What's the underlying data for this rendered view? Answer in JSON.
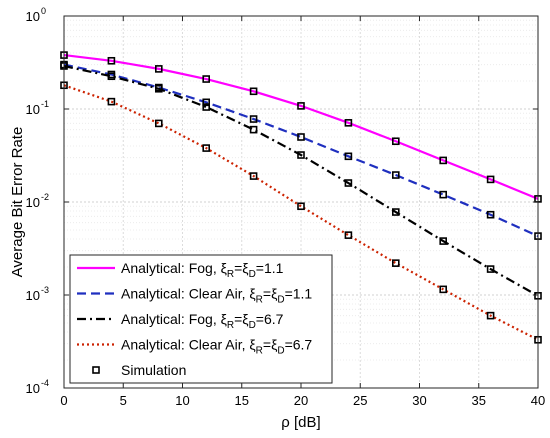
{
  "chart_data": {
    "type": "line",
    "title": "",
    "xlabel": "ρ [dB]",
    "ylabel": "Average Bit Error Rate",
    "x_scale": "linear",
    "y_scale": "log",
    "xlim": [
      0,
      40
    ],
    "ylim": [
      0.0001,
      1
    ],
    "x_ticks": [
      0,
      5,
      10,
      15,
      20,
      25,
      30,
      35,
      40
    ],
    "x_tick_labels": [
      "0",
      "5",
      "10",
      "15",
      "20",
      "25",
      "30",
      "35",
      "40"
    ],
    "y_ticks": [
      0.0001,
      0.001,
      0.01,
      0.1,
      1
    ],
    "y_tick_labels": [
      {
        "base": "10",
        "exp": "-4"
      },
      {
        "base": "10",
        "exp": "-3"
      },
      {
        "base": "10",
        "exp": "-2"
      },
      {
        "base": "10",
        "exp": "-1"
      },
      {
        "base": "10",
        "exp": "0"
      }
    ],
    "grid": true,
    "minor_grid": true,
    "legend_position": "bottom-left",
    "x": [
      0,
      4,
      8,
      12,
      16,
      20,
      24,
      28,
      32,
      36,
      40
    ],
    "series": [
      {
        "name": "Analytical: Fog, ξR=ξD=1.1",
        "legend": {
          "prefix": "Analytical: Fog, ξ",
          "sub1": "R",
          "mid": "=ξ",
          "sub2": "D",
          "suffix": "=1.1"
        },
        "color": "#ff00ff",
        "dash": "solid",
        "values": [
          0.38,
          0.33,
          0.27,
          0.21,
          0.155,
          0.108,
          0.071,
          0.045,
          0.028,
          0.0175,
          0.0108
        ]
      },
      {
        "name": "Analytical: Clear Air, ξR=ξD=1.1",
        "legend": {
          "prefix": "Analytical: Clear Air, ξ",
          "sub1": "R",
          "mid": "=ξ",
          "sub2": "D",
          "suffix": "=1.1"
        },
        "color": "#1f2fbf",
        "dash": "dashed",
        "values": [
          0.3,
          0.235,
          0.17,
          0.118,
          0.078,
          0.05,
          0.031,
          0.0195,
          0.012,
          0.0073,
          0.0043
        ]
      },
      {
        "name": "Analytical: Fog, ξR=ξD=6.7",
        "legend": {
          "prefix": "Analytical: Fog, ξ",
          "sub1": "R",
          "mid": "=ξ",
          "sub2": "D",
          "suffix": "=6.7"
        },
        "color": "#000000",
        "dash": "dashdot",
        "values": [
          0.29,
          0.225,
          0.165,
          0.105,
          0.06,
          0.032,
          0.016,
          0.0078,
          0.0038,
          0.0019,
          0.00098
        ]
      },
      {
        "name": "Analytical: Clear Air, ξR=ξD=6.7",
        "legend": {
          "prefix": "Analytical: Clear Air, ξ",
          "sub1": "R",
          "mid": "=ξ",
          "sub2": "D",
          "suffix": "=6.7"
        },
        "color": "#cc2200",
        "dash": "dotted",
        "values": [
          0.18,
          0.12,
          0.07,
          0.038,
          0.019,
          0.009,
          0.0044,
          0.0022,
          0.00115,
          0.0006,
          0.00033
        ]
      }
    ],
    "simulation": {
      "name": "Simulation",
      "marker": "square",
      "color": "#000000"
    }
  }
}
